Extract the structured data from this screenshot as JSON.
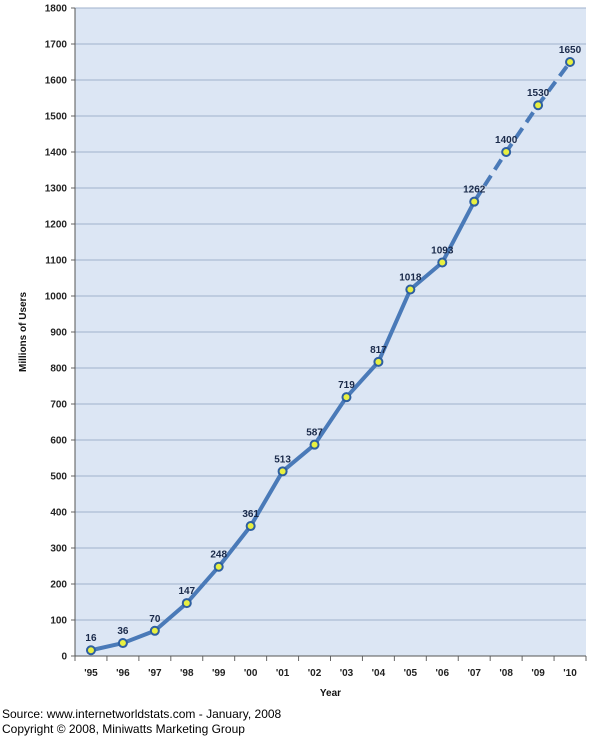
{
  "chart_data": {
    "type": "line",
    "title": "",
    "xlabel": "Year",
    "ylabel": "Millions of Users",
    "categories": [
      "'95",
      "'96",
      "'97",
      "'98",
      "'99",
      "'00",
      "'01",
      "'02",
      "'03",
      "'04",
      "'05",
      "'06",
      "'07",
      "'08",
      "'09",
      "'10"
    ],
    "values": [
      16,
      36,
      70,
      147,
      248,
      361,
      513,
      587,
      719,
      817,
      1018,
      1093,
      1262,
      1400,
      1530,
      1650
    ],
    "projected_from_index": 12,
    "ylim": [
      0,
      1800
    ],
    "yticks": [
      0,
      100,
      200,
      300,
      400,
      500,
      600,
      700,
      800,
      900,
      1000,
      1100,
      1200,
      1300,
      1400,
      1500,
      1600,
      1700,
      1800
    ],
    "grid": true,
    "legend": "none",
    "colors": {
      "plot_background": "#dce6f4",
      "gridline": "#9fb2cc",
      "line": "#4a7ab8",
      "marker_fill": "#e8f040",
      "marker_stroke": "#2e5fa0"
    }
  },
  "footer": {
    "source": "Source: www.internetworldstats.com - January, 2008",
    "copyright": "Copyright © 2008, Miniwatts Marketing Group"
  }
}
